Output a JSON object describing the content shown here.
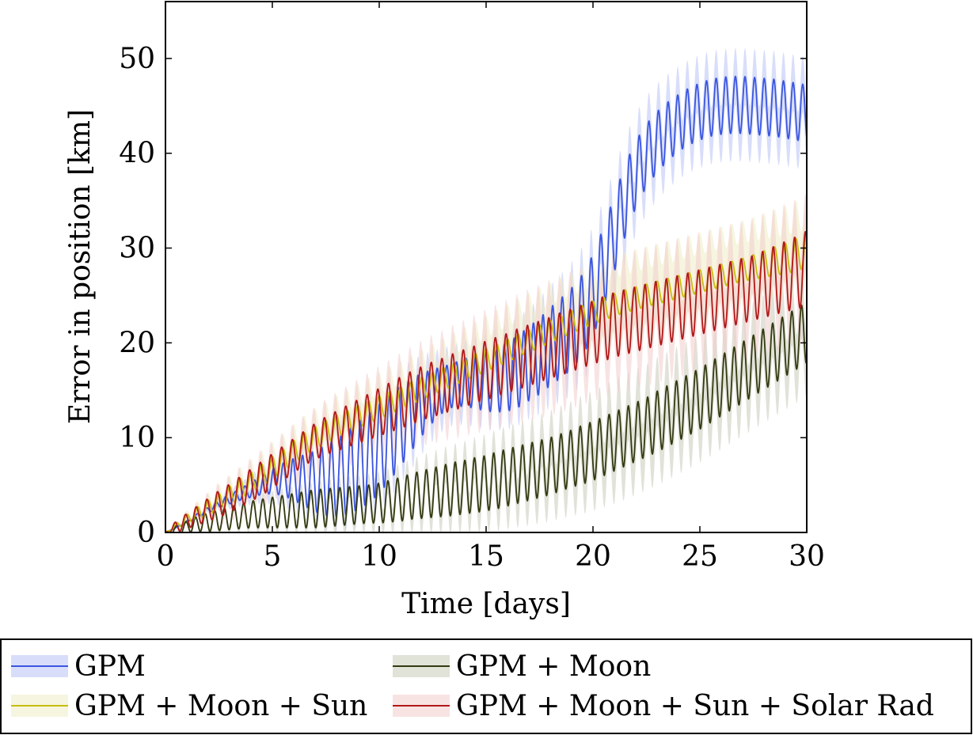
{
  "chart_data": {
    "type": "line",
    "xlabel": "Time [days]",
    "ylabel": "Error in position [km]",
    "xlim": [
      0,
      30
    ],
    "ylim": [
      0,
      56
    ],
    "xticks": [
      0,
      5,
      10,
      15,
      20,
      25,
      30
    ],
    "yticks": [
      0,
      10,
      20,
      30,
      40,
      50
    ],
    "grid": false,
    "legend_position": "bottom",
    "x_step": 0.5,
    "series": [
      {
        "name": "GPM",
        "color": "#3a55e0",
        "band_color": "#b8c2f5",
        "mean": [
          0.0,
          0.5,
          1.1,
          1.8,
          2.4,
          3.0,
          3.5,
          4.0,
          4.5,
          5.0,
          5.4,
          5.6,
          5.6,
          5.5,
          5.4,
          5.5,
          5.8,
          6.3,
          7.0,
          7.8,
          8.8,
          10.0,
          11.2,
          12.4,
          13.5,
          14.4,
          15.1,
          15.6,
          15.8,
          15.9,
          15.9,
          16.1,
          16.4,
          17.0,
          17.8,
          18.6,
          19.6,
          20.5,
          21.5,
          22.9,
          25.0,
          28.0,
          31.5,
          35.0,
          37.8,
          39.8,
          41.2,
          42.3,
          43.2,
          43.9,
          44.4,
          44.8,
          45.0,
          45.1,
          45.1,
          45.0,
          44.9,
          44.8,
          44.6,
          44.4,
          44.2
        ],
        "amplitude": [
          0.0,
          0.05,
          0.1,
          0.2,
          0.3,
          0.4,
          0.5,
          0.6,
          0.8,
          1.0,
          1.3,
          1.7,
          2.2,
          2.7,
          3.2,
          3.7,
          4.1,
          4.4,
          4.6,
          4.7,
          4.7,
          4.5,
          4.2,
          3.8,
          3.3,
          2.8,
          2.4,
          2.3,
          2.5,
          2.8,
          3.1,
          3.4,
          3.6,
          3.8,
          3.9,
          4.0,
          4.1,
          4.2,
          4.3,
          4.3,
          4.3,
          4.2,
          4.0,
          3.8,
          3.5,
          3.3,
          3.2,
          3.1,
          3.0,
          3.0,
          3.0,
          3.0,
          3.0,
          3.0,
          3.0,
          3.0,
          3.0,
          3.0,
          3.0,
          3.0,
          3.0
        ],
        "band": [
          0.0,
          0.1,
          0.2,
          0.3,
          0.4,
          0.5,
          0.6,
          0.7,
          0.8,
          1.0,
          1.1,
          1.2,
          1.3,
          1.4,
          1.5,
          1.6,
          1.7,
          1.8,
          1.9,
          2.0,
          2.0,
          2.0,
          2.0,
          2.0,
          2.0,
          2.0,
          2.0,
          2.0,
          2.0,
          2.0,
          2.0,
          2.0,
          2.0,
          2.0,
          2.0,
          2.2,
          2.4,
          2.6,
          2.8,
          3.0,
          3.0,
          3.0,
          3.0,
          3.0,
          3.0,
          3.0,
          3.0,
          3.0,
          3.0,
          3.0,
          3.0,
          3.0,
          3.0,
          3.0,
          3.0,
          3.0,
          3.0,
          3.0,
          3.0,
          3.0,
          3.0
        ],
        "period": 0.45
      },
      {
        "name": "GPM + Moon",
        "color": "#333a11",
        "band_color": "#c9cbb8",
        "mean": [
          0.0,
          0.3,
          0.6,
          0.9,
          1.1,
          1.3,
          1.5,
          1.7,
          1.9,
          2.0,
          2.1,
          2.2,
          2.3,
          2.4,
          2.5,
          2.6,
          2.7,
          2.8,
          2.9,
          3.0,
          3.1,
          3.3,
          3.5,
          3.8,
          4.0,
          4.2,
          4.4,
          4.6,
          4.8,
          5.0,
          5.2,
          5.5,
          5.8,
          6.1,
          6.4,
          6.7,
          7.0,
          7.4,
          7.8,
          8.2,
          8.6,
          9.1,
          9.6,
          10.1,
          10.6,
          11.1,
          11.7,
          12.3,
          12.9,
          13.5,
          14.1,
          14.8,
          15.5,
          16.2,
          16.9,
          17.6,
          18.3,
          19.0,
          19.7,
          20.4,
          21.1
        ],
        "amplitude": [
          0.0,
          0.4,
          0.6,
          0.8,
          1.0,
          1.1,
          1.2,
          1.3,
          1.4,
          1.5,
          1.6,
          1.7,
          1.8,
          1.9,
          2.0,
          2.0,
          2.0,
          2.0,
          2.0,
          2.0,
          2.1,
          2.2,
          2.3,
          2.4,
          2.5,
          2.6,
          2.7,
          2.8,
          2.8,
          2.9,
          2.9,
          3.0,
          3.0,
          3.0,
          3.0,
          3.0,
          3.0,
          3.0,
          3.0,
          3.1,
          3.1,
          3.1,
          3.1,
          3.1,
          3.1,
          3.1,
          3.2,
          3.2,
          3.2,
          3.2,
          3.2,
          3.2,
          3.2,
          3.2,
          3.2,
          3.2,
          3.2,
          3.2,
          3.2,
          3.2,
          3.2
        ],
        "band": [
          0.0,
          0.1,
          0.2,
          0.3,
          0.4,
          0.5,
          0.5,
          0.6,
          0.6,
          0.7,
          0.7,
          0.8,
          0.8,
          0.9,
          0.9,
          1.0,
          1.0,
          1.1,
          1.1,
          1.2,
          1.3,
          1.4,
          1.5,
          1.6,
          1.7,
          1.8,
          1.9,
          2.0,
          2.1,
          2.2,
          2.3,
          2.4,
          2.5,
          2.6,
          2.7,
          2.8,
          2.9,
          3.0,
          3.1,
          3.2,
          3.3,
          3.4,
          3.5,
          3.6,
          3.6,
          3.6,
          3.6,
          3.6,
          3.6,
          3.6,
          3.6,
          3.6,
          3.6,
          3.6,
          3.6,
          3.6,
          3.6,
          3.6,
          3.6,
          3.6,
          3.6
        ],
        "period": 0.45
      },
      {
        "name": "GPM + Moon + Sun",
        "color": "#c8be10",
        "band_color": "#eeedc4",
        "mean": [
          0.0,
          0.7,
          1.4,
          2.0,
          2.6,
          3.2,
          3.9,
          4.6,
          5.3,
          6.0,
          6.8,
          7.6,
          8.5,
          9.3,
          10.0,
          10.6,
          11.2,
          11.7,
          12.2,
          12.7,
          13.2,
          13.7,
          14.2,
          14.7,
          15.2,
          15.7,
          16.2,
          16.7,
          17.2,
          17.7,
          18.2,
          18.7,
          19.2,
          19.7,
          20.2,
          20.7,
          21.2,
          21.7,
          22.2,
          22.7,
          23.2,
          23.6,
          24.0,
          24.4,
          24.7,
          25.0,
          25.3,
          25.6,
          25.9,
          26.2,
          26.5,
          26.8,
          27.1,
          27.4,
          27.7,
          28.0,
          28.3,
          28.6,
          28.9,
          29.3,
          29.7
        ],
        "amplitude": [
          0.0,
          0.3,
          0.5,
          0.7,
          0.8,
          0.9,
          1.0,
          1.1,
          1.1,
          1.2,
          1.2,
          1.2,
          1.2,
          1.2,
          1.2,
          1.2,
          1.2,
          1.2,
          1.2,
          1.2,
          1.2,
          1.2,
          1.2,
          1.2,
          1.2,
          1.2,
          1.2,
          1.2,
          1.2,
          1.2,
          1.2,
          1.2,
          1.2,
          1.2,
          1.2,
          1.2,
          1.2,
          1.2,
          1.2,
          1.2,
          1.2,
          1.2,
          1.2,
          1.2,
          1.2,
          1.2,
          1.2,
          1.2,
          1.2,
          1.2,
          1.2,
          1.2,
          1.2,
          1.2,
          1.2,
          1.3,
          1.4,
          1.5,
          1.6,
          1.7,
          1.8
        ],
        "band": [
          0.0,
          0.2,
          0.4,
          0.6,
          0.8,
          1.0,
          1.1,
          1.2,
          1.3,
          1.4,
          1.5,
          1.6,
          1.7,
          1.8,
          1.9,
          2.0,
          2.1,
          2.2,
          2.3,
          2.4,
          2.5,
          2.6,
          2.7,
          2.8,
          2.9,
          3.0,
          3.1,
          3.2,
          3.3,
          3.4,
          3.5,
          3.6,
          3.7,
          3.8,
          3.9,
          4.0,
          4.0,
          4.0,
          4.0,
          4.0,
          4.0,
          4.0,
          4.0,
          4.0,
          4.0,
          4.0,
          4.0,
          4.0,
          4.0,
          4.0,
          4.0,
          4.0,
          4.0,
          4.0,
          4.0,
          4.0,
          4.0,
          4.0,
          4.0,
          4.0,
          4.0
        ],
        "period": 0.5
      },
      {
        "name": "GPM + Moon + Sun + Solar Rad",
        "color": "#b01818",
        "band_color": "#f2cccc",
        "mean": [
          0.0,
          0.6,
          1.2,
          1.8,
          2.4,
          3.0,
          3.6,
          4.3,
          5.0,
          5.7,
          6.5,
          7.3,
          8.1,
          8.9,
          9.6,
          10.2,
          10.7,
          11.2,
          11.7,
          12.2,
          12.7,
          13.2,
          13.7,
          14.2,
          14.7,
          15.1,
          15.5,
          15.9,
          16.3,
          16.7,
          17.1,
          17.5,
          17.9,
          18.3,
          18.7,
          19.1,
          19.5,
          19.9,
          20.3,
          20.7,
          21.1,
          21.5,
          21.9,
          22.2,
          22.5,
          22.8,
          23.1,
          23.4,
          23.7,
          24.0,
          24.3,
          24.6,
          24.9,
          25.2,
          25.5,
          25.8,
          26.2,
          26.6,
          27.0,
          27.4,
          27.8
        ],
        "amplitude": [
          0.0,
          0.6,
          0.8,
          1.0,
          1.2,
          1.4,
          1.5,
          1.6,
          1.7,
          1.8,
          1.8,
          1.8,
          1.8,
          1.8,
          1.9,
          2.0,
          2.1,
          2.2,
          2.3,
          2.4,
          2.5,
          2.6,
          2.7,
          2.8,
          2.8,
          2.9,
          2.9,
          3.0,
          3.0,
          3.0,
          3.1,
          3.1,
          3.1,
          3.2,
          3.2,
          3.2,
          3.2,
          3.3,
          3.3,
          3.3,
          3.3,
          3.4,
          3.4,
          3.4,
          3.4,
          3.4,
          3.4,
          3.4,
          3.4,
          3.4,
          3.4,
          3.4,
          3.4,
          3.4,
          3.4,
          3.4,
          3.5,
          3.6,
          3.7,
          3.8,
          4.0
        ],
        "band": [
          0.0,
          0.2,
          0.3,
          0.5,
          0.7,
          0.9,
          1.0,
          1.1,
          1.2,
          1.3,
          1.4,
          1.5,
          1.6,
          1.7,
          1.8,
          1.9,
          2.0,
          2.1,
          2.2,
          2.3,
          2.4,
          2.5,
          2.6,
          2.7,
          2.8,
          2.9,
          3.0,
          3.1,
          3.2,
          3.3,
          3.4,
          3.5,
          3.6,
          3.7,
          3.8,
          3.9,
          4.0,
          4.0,
          4.0,
          4.0,
          4.0,
          4.0,
          4.0,
          4.0,
          4.0,
          4.0,
          4.0,
          4.0,
          4.0,
          4.0,
          4.0,
          4.0,
          4.0,
          4.0,
          4.0,
          4.0,
          4.0,
          4.0,
          4.0,
          4.0,
          4.0
        ],
        "period": 0.5
      }
    ]
  }
}
